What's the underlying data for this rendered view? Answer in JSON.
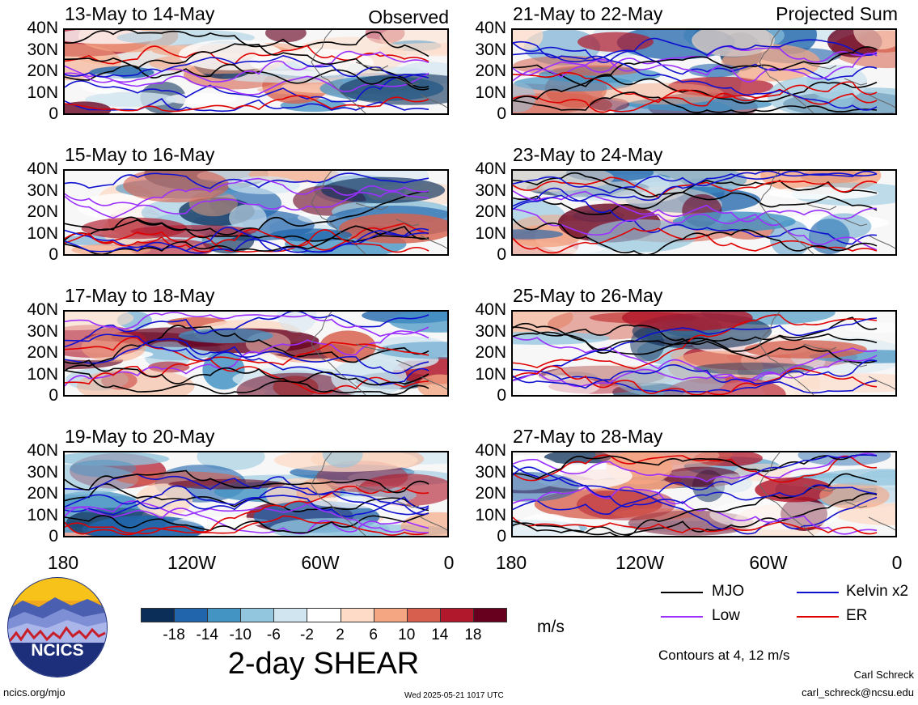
{
  "observed_label": "Observed",
  "projected_label": "Projected Sum",
  "lat_labels": [
    "40N",
    "30N",
    "20N",
    "10N",
    "0"
  ],
  "lon_labels": [
    "180",
    "120W",
    "60W",
    "0"
  ],
  "panels": [
    {
      "id": "p1",
      "title": "13-May to 14-May",
      "group": "observed"
    },
    {
      "id": "p2",
      "title": "15-May to 16-May",
      "group": "observed"
    },
    {
      "id": "p3",
      "title": "17-May to 18-May",
      "group": "observed"
    },
    {
      "id": "p4",
      "title": "19-May to 20-May",
      "group": "observed"
    },
    {
      "id": "p5",
      "title": "21-May to 22-May",
      "group": "projected"
    },
    {
      "id": "p6",
      "title": "23-May to 24-May",
      "group": "projected"
    },
    {
      "id": "p7",
      "title": "25-May to 26-May",
      "group": "projected"
    },
    {
      "id": "p8",
      "title": "27-May to 28-May",
      "group": "projected"
    }
  ],
  "colorbar": {
    "labels": [
      "-18",
      "-14",
      "-10",
      "-6",
      "-2",
      "2",
      "6",
      "10",
      "14",
      "18"
    ],
    "colors": [
      "#0b2e59",
      "#2166ac",
      "#4393c3",
      "#92c5de",
      "#d1e5f0",
      "#ffffff",
      "#fddbc7",
      "#f4a582",
      "#d6604d",
      "#b2182b",
      "#67001f"
    ],
    "units": "m/s",
    "title": "2-day SHEAR"
  },
  "legend": [
    {
      "label": "MJO",
      "color": "#000000"
    },
    {
      "label": "Kelvin x2",
      "color": "#1010d0"
    },
    {
      "label": "Low",
      "color": "#9b30ff"
    },
    {
      "label": "ER",
      "color": "#e00000"
    }
  ],
  "contours_note": "Contours at 4, 12 m/s",
  "logo_text": "NCICS",
  "footer": {
    "url": "ncics.org/mjo",
    "timestamp": "Wed 2025-05-21 1017 UTC",
    "author": "Carl Schreck",
    "email": "carl_schreck@ncsu.edu"
  }
}
